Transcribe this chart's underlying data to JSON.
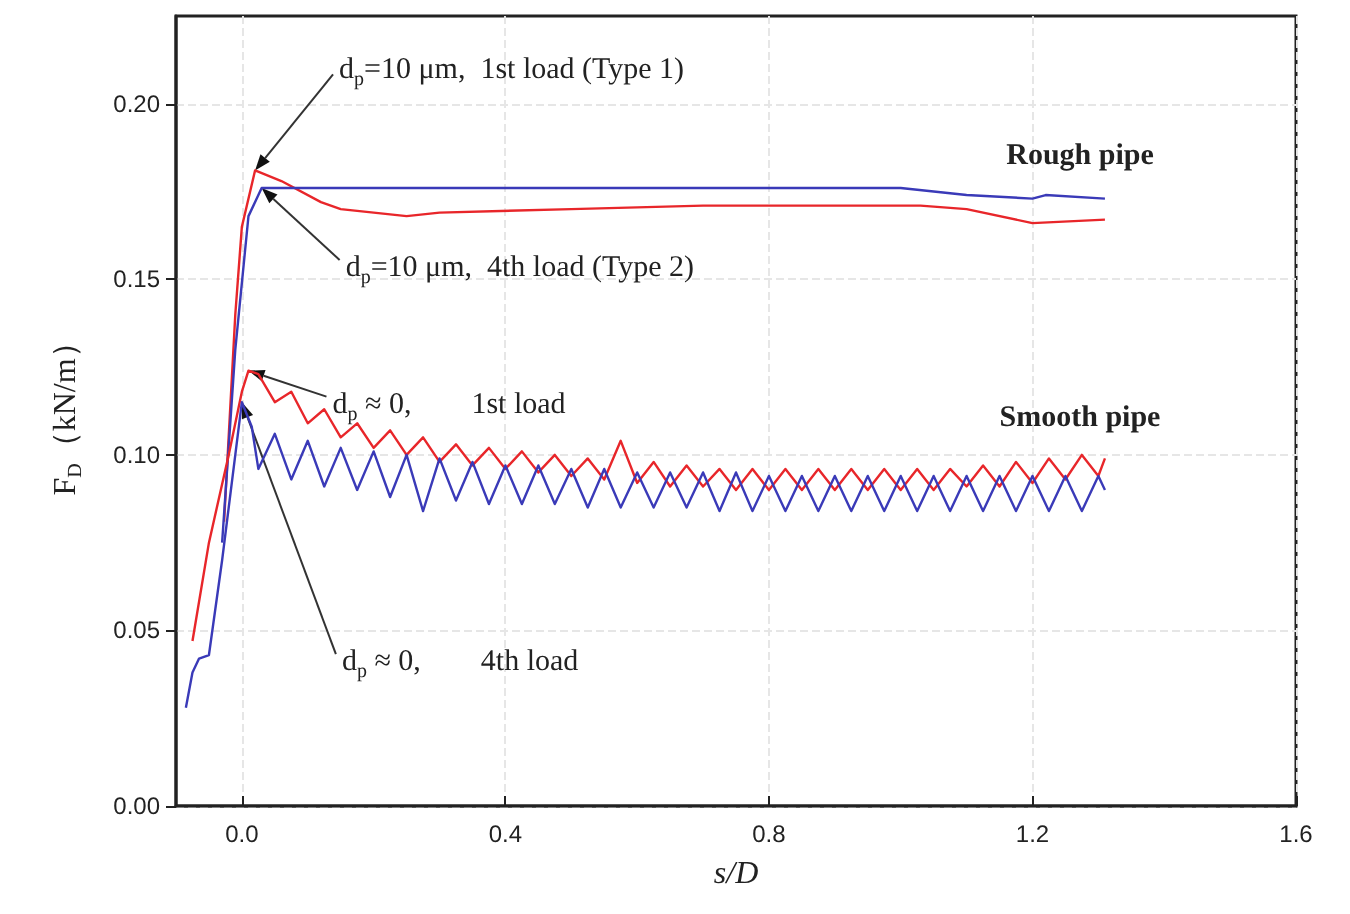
{
  "chart_data": {
    "type": "line",
    "xlabel": "s/D",
    "ylabel": "F$_{D}$（kN/m）",
    "xlim": [
      -0.1,
      1.6
    ],
    "ylim": [
      0,
      0.225
    ],
    "xticks": [
      {
        "value": 0,
        "label": "0.0"
      },
      0.4,
      0.8,
      1.2,
      1.6
    ],
    "yticks": [
      {
        "value": 0,
        "label": "0.00"
      },
      0.05,
      {
        "value": 0.1,
        "label": "0.10"
      },
      0.15,
      {
        "value": 0.2,
        "label": "0.20"
      }
    ],
    "grid": true,
    "marker": "none",
    "line_style": "solid",
    "series": [
      {
        "color": "#e8262a",
        "x": [
          -0.027,
          -0.01,
          0.0,
          0.02,
          0.06,
          0.12,
          0.15,
          0.25,
          0.3,
          0.5,
          0.7,
          0.9,
          1.03,
          1.1,
          1.2,
          1.31
        ],
        "values": [
          0.081,
          0.14,
          0.165,
          0.181,
          0.178,
          0.172,
          0.17,
          0.168,
          0.169,
          0.17,
          0.171,
          0.171,
          0.171,
          0.17,
          0.166,
          0.167
        ]
      },
      {
        "color": "#3a3ab8",
        "x": [
          -0.03,
          -0.01,
          0.01,
          0.03,
          0.2,
          0.4,
          0.6,
          0.8,
          1.0,
          1.1,
          1.2,
          1.22,
          1.31
        ],
        "values": [
          0.075,
          0.13,
          0.168,
          0.176,
          0.176,
          0.176,
          0.176,
          0.176,
          0.176,
          0.174,
          0.173,
          0.174,
          0.173
        ]
      },
      {
        "color": "#e8262a",
        "x": [
          -0.075,
          -0.05,
          -0.02,
          0.0,
          0.01,
          0.025,
          0.05,
          0.075,
          0.1,
          0.125,
          0.15,
          0.175,
          0.2,
          0.225,
          0.25,
          0.275,
          0.3,
          0.325,
          0.35,
          0.375,
          0.4,
          0.425,
          0.45,
          0.475,
          0.5,
          0.525,
          0.55,
          0.575,
          0.6,
          0.625,
          0.65,
          0.675,
          0.7,
          0.725,
          0.75,
          0.775,
          0.8,
          0.825,
          0.85,
          0.875,
          0.9,
          0.925,
          0.95,
          0.975,
          1.0,
          1.025,
          1.05,
          1.075,
          1.1,
          1.125,
          1.15,
          1.175,
          1.2,
          1.225,
          1.25,
          1.275,
          1.3,
          1.31
        ],
        "values": [
          0.047,
          0.075,
          0.1,
          0.118,
          0.124,
          0.123,
          0.115,
          0.118,
          0.109,
          0.113,
          0.105,
          0.109,
          0.102,
          0.107,
          0.1,
          0.105,
          0.098,
          0.103,
          0.097,
          0.102,
          0.096,
          0.101,
          0.095,
          0.1,
          0.094,
          0.099,
          0.093,
          0.104,
          0.092,
          0.098,
          0.091,
          0.097,
          0.091,
          0.096,
          0.09,
          0.096,
          0.09,
          0.096,
          0.09,
          0.096,
          0.09,
          0.096,
          0.09,
          0.096,
          0.09,
          0.096,
          0.09,
          0.096,
          0.091,
          0.097,
          0.091,
          0.098,
          0.092,
          0.099,
          0.093,
          0.1,
          0.094,
          0.099
        ]
      },
      {
        "color": "#3a3ab8",
        "x": [
          -0.085,
          -0.075,
          -0.065,
          -0.05,
          -0.03,
          -0.01,
          0.0,
          0.015,
          0.025,
          0.05,
          0.075,
          0.1,
          0.125,
          0.15,
          0.175,
          0.2,
          0.225,
          0.25,
          0.275,
          0.3,
          0.325,
          0.35,
          0.375,
          0.4,
          0.425,
          0.45,
          0.475,
          0.5,
          0.525,
          0.55,
          0.575,
          0.6,
          0.625,
          0.65,
          0.675,
          0.7,
          0.725,
          0.75,
          0.775,
          0.8,
          0.825,
          0.85,
          0.875,
          0.9,
          0.925,
          0.95,
          0.975,
          1.0,
          1.025,
          1.05,
          1.075,
          1.1,
          1.125,
          1.15,
          1.175,
          1.2,
          1.225,
          1.25,
          1.275,
          1.3,
          1.31
        ],
        "values": [
          0.028,
          0.038,
          0.042,
          0.043,
          0.07,
          0.1,
          0.115,
          0.108,
          0.096,
          0.106,
          0.093,
          0.104,
          0.091,
          0.102,
          0.09,
          0.101,
          0.088,
          0.1,
          0.084,
          0.099,
          0.087,
          0.098,
          0.086,
          0.097,
          0.086,
          0.097,
          0.086,
          0.096,
          0.085,
          0.096,
          0.085,
          0.095,
          0.085,
          0.095,
          0.085,
          0.095,
          0.084,
          0.095,
          0.084,
          0.094,
          0.084,
          0.094,
          0.084,
          0.094,
          0.084,
          0.094,
          0.084,
          0.094,
          0.084,
          0.094,
          0.084,
          0.094,
          0.084,
          0.094,
          0.084,
          0.094,
          0.084,
          0.094,
          0.084,
          0.094,
          0.09
        ]
      }
    ],
    "annotations": [
      {
        "text": "d$_{p}$=10 μm,  1st load (Type 1)",
        "x": 0.02,
        "y": 0.181
      },
      {
        "text": "d$_{p}$=10 μm,  4th load (Type 2)",
        "x": 0.03,
        "y": 0.176
      },
      {
        "text": "d$_{p}$ ≈ 0,        1st load",
        "x": 0.01,
        "y": 0.124
      },
      {
        "text": "d$_{p}$ ≈ 0,        4th load",
        "x": 0.0,
        "y": 0.115
      },
      "Rough pipe",
      "Smooth pipe"
    ]
  }
}
